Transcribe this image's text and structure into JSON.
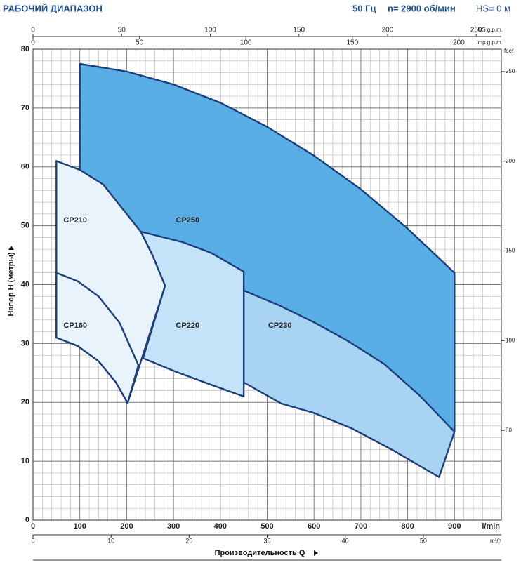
{
  "chart_data": {
    "type": "area",
    "title": "РАБОЧИЙ ДИАПАЗОН",
    "subtitle": [
      "50 Гц",
      "n= 2900 об/мин",
      "HS= 0 м"
    ],
    "x_label": "Производительность Q",
    "x_unit": "l/min",
    "y_label": "Напор H (метры)",
    "xlim": [
      0,
      1000
    ],
    "xticks": [
      0,
      100,
      200,
      300,
      400,
      500,
      600,
      700,
      800,
      900
    ],
    "ylim": [
      0,
      80
    ],
    "yticks": [
      0,
      10,
      20,
      30,
      40,
      50,
      60,
      70,
      80
    ],
    "grid": true,
    "outline_color": "#1b3f7c",
    "top_axes": [
      {
        "label": "US g.p.m.",
        "lim": [
          0,
          264.17
        ],
        "ticks": [
          0,
          50,
          100,
          150,
          200,
          250
        ]
      },
      {
        "label": "Imp g.p.m.",
        "lim": [
          0,
          219.97
        ],
        "ticks": [
          0,
          50,
          100,
          150,
          200
        ]
      }
    ],
    "bottom_axis": {
      "label": "m³/h",
      "lim": [
        0,
        60
      ],
      "ticks": [
        0,
        10,
        20,
        30,
        40,
        50
      ]
    },
    "right_axis": {
      "label": "feet",
      "lim": [
        0,
        262.47
      ],
      "ticks": [
        50,
        100,
        150,
        200,
        250
      ]
    },
    "series": [
      {
        "name": "CP250",
        "color": "#5aaee6",
        "x": [
          100,
          200,
          300,
          400,
          500,
          600,
          700,
          800,
          900,
          900,
          750,
          600,
          450,
          230,
          100
        ],
        "y": [
          77.5,
          76.2,
          74.0,
          70.9,
          66.8,
          61.9,
          56.2,
          49.5,
          42,
          15,
          26.5,
          33.6,
          39,
          49,
          59
        ]
      },
      {
        "name": "CP230",
        "color": "#a8d3f2",
        "x": [
          450,
          525,
          600,
          675,
          750,
          825,
          900,
          867,
          770,
          680,
          600,
          530,
          450
        ],
        "y": [
          39,
          36.5,
          33.6,
          30.3,
          26.5,
          21.2,
          15,
          7.3,
          11.8,
          15.6,
          18.2,
          19.8,
          23.4
        ]
      },
      {
        "name": "CP220",
        "color": "#c5e3f8",
        "x": [
          230,
          320,
          380,
          450,
          450,
          380,
          305,
          235,
          282,
          255
        ],
        "y": [
          49,
          47.2,
          45.4,
          42.2,
          21,
          23,
          25.2,
          27.5,
          39.8,
          45
        ]
      },
      {
        "name": "CP210",
        "color": "#e8f3fc",
        "x": [
          50,
          100,
          150,
          200,
          230,
          255,
          282,
          202,
          177,
          140,
          95,
          50
        ],
        "y": [
          61,
          59.5,
          57,
          52,
          49,
          45,
          39.8,
          19.9,
          23.4,
          27,
          29.6,
          31
        ]
      },
      {
        "name": "CP160",
        "color": "#e8f3fc",
        "x": [
          50,
          95,
          140,
          185,
          225,
          202,
          177,
          140,
          95,
          50
        ],
        "y": [
          42,
          40.6,
          38,
          33.5,
          26.3,
          19.9,
          23.4,
          27,
          29.6,
          31
        ]
      }
    ]
  }
}
